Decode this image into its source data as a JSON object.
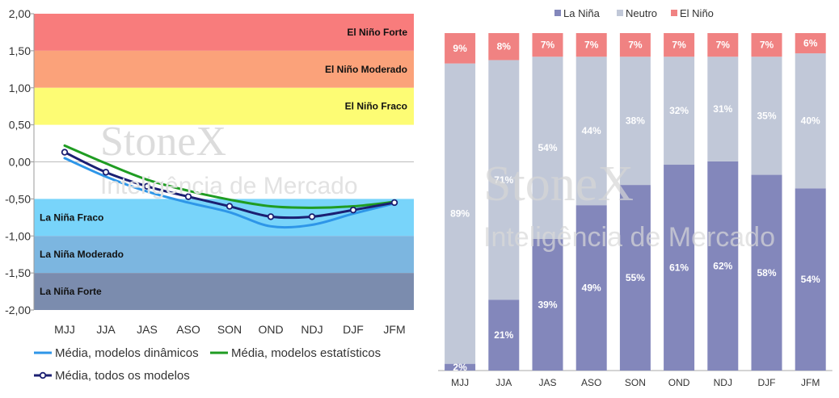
{
  "watermark": {
    "brand": "StoneX",
    "subtitle": "Inteligência de Mercado"
  },
  "colors": {
    "la_nina": "#8387bb",
    "neutro": "#c1c8d8",
    "el_nino": "#f08282",
    "dinamicos": "#2e96e8",
    "estatisticos": "#1f9c22",
    "todos": "#1b1f72",
    "band_nino_forte": "#f87c7c",
    "band_nino_moderado": "#fba27a",
    "band_nino_fraco": "#fdfc74",
    "band_nina_fraco": "#78d4fa",
    "band_nina_moderado": "#7cb6e0",
    "band_nina_forte": "#7b8cae"
  },
  "chart_data": [
    {
      "type": "line",
      "categories": [
        "MJJ",
        "JJA",
        "JAS",
        "ASO",
        "SON",
        "OND",
        "NDJ",
        "DJF",
        "JFM"
      ],
      "y_ticks": [
        "2,00",
        "1,50",
        "1,00",
        "0,50",
        "0,00",
        "-0,50",
        "-1,00",
        "-1,50",
        "-2,00"
      ],
      "ylim": [
        -2.0,
        2.0
      ],
      "bands": [
        {
          "label": "El Niño Forte",
          "from": 1.5,
          "to": 2.0,
          "color_key": "band_nino_forte"
        },
        {
          "label": "El Niño Moderado",
          "from": 1.0,
          "to": 1.5,
          "color_key": "band_nino_moderado"
        },
        {
          "label": "El Niño Fraco",
          "from": 0.5,
          "to": 1.0,
          "color_key": "band_nino_fraco"
        },
        {
          "label": "La Niña Fraco",
          "from": -1.0,
          "to": -0.5,
          "color_key": "band_nina_fraco"
        },
        {
          "label": "La Niña Moderado",
          "from": -1.5,
          "to": -1.0,
          "color_key": "band_nina_moderado"
        },
        {
          "label": "La Niña Forte",
          "from": -2.0,
          "to": -1.5,
          "color_key": "band_nina_forte"
        }
      ],
      "series": [
        {
          "name": "Média, modelos dinâmicos",
          "color_key": "dinamicos",
          "markers": false,
          "values": [
            0.05,
            -0.2,
            -0.4,
            -0.55,
            -0.68,
            -0.87,
            -0.85,
            -0.7,
            -0.56
          ]
        },
        {
          "name": "Média, modelos estatísticos",
          "color_key": "estatisticos",
          "markers": false,
          "values": [
            0.22,
            -0.02,
            -0.24,
            -0.39,
            -0.51,
            -0.6,
            -0.62,
            -0.6,
            -0.54
          ]
        },
        {
          "name": "Média, todos os modelos",
          "color_key": "todos",
          "markers": true,
          "values": [
            0.13,
            -0.14,
            -0.33,
            -0.47,
            -0.6,
            -0.74,
            -0.74,
            -0.65,
            -0.55
          ]
        }
      ]
    },
    {
      "type": "bar",
      "stacked": true,
      "categories": [
        "MJJ",
        "JJA",
        "JAS",
        "ASO",
        "SON",
        "OND",
        "NDJ",
        "DJF",
        "JFM"
      ],
      "ylim": [
        0,
        100
      ],
      "legend_position": "top",
      "series": [
        {
          "name": "La Niña",
          "color_key": "la_nina",
          "values": [
            2,
            21,
            39,
            49,
            55,
            61,
            62,
            58,
            54
          ],
          "labels": [
            "2%",
            "21%",
            "39%",
            "49%",
            "55%",
            "61%",
            "62%",
            "58%",
            "54%"
          ]
        },
        {
          "name": "Neutro",
          "color_key": "neutro",
          "values": [
            89,
            71,
            54,
            44,
            38,
            32,
            31,
            35,
            40
          ],
          "labels": [
            "89%",
            "71%",
            "54%",
            "44%",
            "38%",
            "32%",
            "31%",
            "35%",
            "40%"
          ]
        },
        {
          "name": "El Niño",
          "color_key": "el_nino",
          "values": [
            9,
            8,
            7,
            7,
            7,
            7,
            7,
            7,
            6
          ],
          "labels": [
            "9%",
            "8%",
            "7%",
            "7%",
            "7%",
            "7%",
            "7%",
            "7%",
            "6%"
          ]
        }
      ]
    }
  ]
}
